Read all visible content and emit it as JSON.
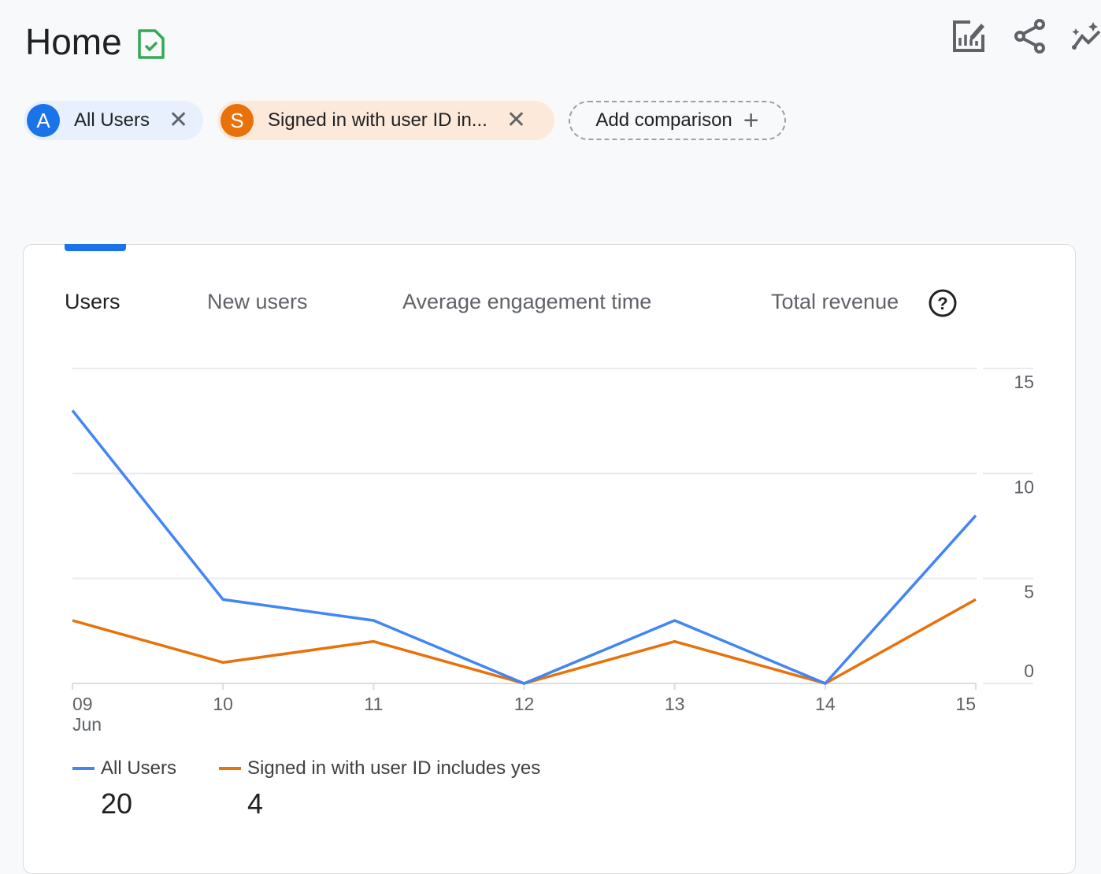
{
  "header": {
    "title": "Home",
    "icons": [
      "report-verified-icon",
      "customize-report-icon",
      "share-icon",
      "insights-icon"
    ]
  },
  "comparisons": [
    {
      "avatar": "A",
      "label": "All Users",
      "color": "#1a73e8"
    },
    {
      "avatar": "S",
      "label": "Signed in with user ID in...",
      "color": "#e8710a"
    }
  ],
  "add_comparison_label": "Add comparison",
  "tabs": [
    {
      "label": "Users",
      "selected": true
    },
    {
      "label": "New users"
    },
    {
      "label": "Average engagement time"
    },
    {
      "label": "Total revenue"
    }
  ],
  "chart_data": {
    "type": "line",
    "x": [
      "09",
      "10",
      "11",
      "12",
      "13",
      "14",
      "15"
    ],
    "x_sublabel": "Jun",
    "ylim": [
      0,
      15
    ],
    "yticks": [
      0,
      5,
      10,
      15
    ],
    "y_axis_side": "right",
    "grid": true,
    "legend": "bottom-left",
    "series": [
      {
        "name": "All Users",
        "color": "#4285f4",
        "values": [
          13,
          4,
          3,
          0,
          3,
          0,
          8
        ],
        "total": "20"
      },
      {
        "name": "Signed in with user ID includes yes",
        "color": "#e8710a",
        "values": [
          3,
          1,
          2,
          0,
          2,
          0,
          4
        ],
        "total": "4"
      }
    ]
  }
}
